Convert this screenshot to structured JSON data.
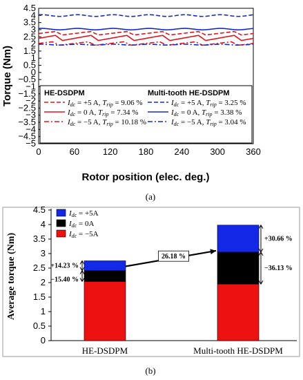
{
  "chart_data": [
    {
      "panel": "(a)",
      "type": "line",
      "xlabel": "Rotor position (elec. deg.)",
      "ylabel": "Torque (Nm)",
      "xlim": [
        0,
        360
      ],
      "ylim": [
        -5,
        4.5
      ],
      "xticks": [
        0,
        60,
        120,
        180,
        240,
        300,
        360
      ],
      "yticks": [
        -5,
        -4.5,
        -4,
        -3.5,
        -3,
        -2.5,
        -2,
        -1.5,
        -1,
        -0.5,
        0,
        0.5,
        1,
        1.5,
        2,
        2.5,
        3,
        3.5,
        4,
        4.5
      ],
      "ytick_labels": [
        "−5",
        "−4.5",
        "−4",
        "−3.5",
        "−3",
        "−2.5",
        "−2",
        "−1.5",
        "−1",
        "−0.5",
        "0",
        "0.5",
        "1",
        "1.5",
        "2",
        "2.5",
        "3",
        "3.5",
        "4",
        "4.5"
      ],
      "legend": {
        "group_titles": [
          "HE-DSDPM",
          "Multi-tooth HE-DSDPM"
        ],
        "entries": [
          {
            "group": 0,
            "pre": "I",
            "sub": "dc",
            "post": "= +5 A, ",
            "tpre": "T",
            "tsub": "rip",
            "tpost": " = 9.06 %",
            "color": "#e0141e",
            "dash": "6,3"
          },
          {
            "group": 0,
            "pre": "I",
            "sub": "dc",
            "post": "= 0 A, ",
            "tpre": "T",
            "tsub": "rip",
            "tpost": " = 7.34 %",
            "color": "#e0141e",
            "dash": ""
          },
          {
            "group": 0,
            "pre": "I",
            "sub": "dc",
            "post": "= −5 A, ",
            "tpre": "T",
            "tsub": "rip",
            "tpost": " = 10.18 %",
            "color": "#e0141e",
            "dash": "7,3,2,3"
          },
          {
            "group": 1,
            "pre": "I",
            "sub": "dc",
            "post": "= +5 A, ",
            "tpre": "T",
            "tsub": "rip",
            "tpost": " = 3.25 %",
            "color": "#1428d0",
            "dash": "6,3"
          },
          {
            "group": 1,
            "pre": "I",
            "sub": "dc",
            "post": "= 0 A, ",
            "tpre": "T",
            "tsub": "rip",
            "tpost": " = 3.38 %",
            "color": "#1428d0",
            "dash": ""
          },
          {
            "group": 1,
            "pre": "I",
            "sub": "dc",
            "post": "= −5 A, ",
            "tpre": "T",
            "tsub": "rip",
            "tpost": " = 3.04 %",
            "color": "#1428d0",
            "dash": "7,3,2,3"
          }
        ]
      },
      "series": [
        {
          "name": "HE-DSDPM, Idc = +5 A",
          "color": "#e0141e",
          "dash": "6,3",
          "mean": 2.75,
          "amp": 0.12,
          "period": 60,
          "phase": 20,
          "sharp": true
        },
        {
          "name": "HE-DSDPM, Idc = 0 A",
          "color": "#e0141e",
          "dash": "",
          "mean": 2.42,
          "amp": 0.18,
          "period": 60,
          "phase": 20,
          "sharp": true
        },
        {
          "name": "HE-DSDPM, Idc = −5 A",
          "color": "#e0141e",
          "dash": "7,3,2,3",
          "mean": 2.03,
          "amp": 0.12,
          "period": 60,
          "phase": 25,
          "sharp": true
        },
        {
          "name": "Multi-tooth HE-DSDPM, Idc = +5 A",
          "color": "#1428d0",
          "dash": "6,3",
          "mean": 3.99,
          "amp": 0.06,
          "period": 60,
          "phase": 10,
          "sharp": false
        },
        {
          "name": "Multi-tooth HE-DSDPM, Idc = 0 A",
          "color": "#1428d0",
          "dash": "",
          "mean": 3.04,
          "amp": 0.05,
          "period": 60,
          "phase": 10,
          "sharp": false
        },
        {
          "name": "Multi-tooth HE-DSDPM, Idc = −5 A",
          "color": "#1428d0",
          "dash": "7,3,2,3",
          "mean": 1.95,
          "amp": 0.03,
          "period": 60,
          "phase": 10,
          "sharp": false
        }
      ]
    },
    {
      "panel": "(b)",
      "type": "bar",
      "stacked": true,
      "ylabel": "Average torque (Nm)",
      "ylim": [
        0,
        4.5
      ],
      "yticks": [
        0,
        0.5,
        1,
        1.5,
        2,
        2.5,
        3,
        3.5,
        4,
        4.5
      ],
      "categories": [
        "HE-DSDPM",
        "Multi-tooth HE-DSDPM"
      ],
      "legend": [
        {
          "pre": "I",
          "sub": "dc",
          "post": " = +5A",
          "color": "#1428e8"
        },
        {
          "pre": "I",
          "sub": "dc",
          "post": " = 0A",
          "color": "#000000"
        },
        {
          "pre": "I",
          "sub": "dc",
          "post": " = −5A",
          "color": "#ee1111"
        }
      ],
      "totals": {
        "minus5": [
          2.04,
          1.95
        ],
        "zero": [
          2.41,
          3.05
        ],
        "plus5": [
          2.75,
          3.98
        ]
      },
      "annotations": {
        "left_top": "+14.23 %",
        "left_bottom": "−15.40 %",
        "right_top": "+30.66 %",
        "right_bottom": "−36.13 %",
        "arrow_label": "26.18 %"
      }
    }
  ]
}
